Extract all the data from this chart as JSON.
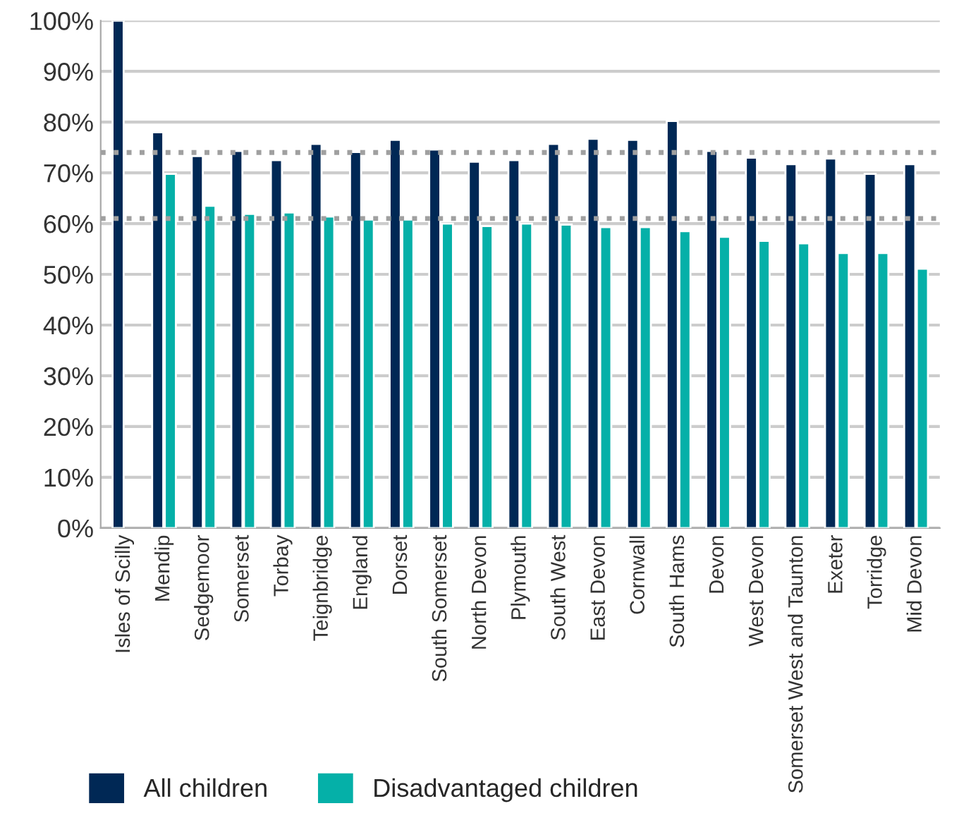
{
  "chart_data": {
    "type": "bar",
    "categories": [
      "Isles of Scilly",
      "Mendip",
      "Sedgemoor",
      "Somerset",
      "Torbay",
      "Teignbridge",
      "England",
      "Dorset",
      "South Somerset",
      "North Devon",
      "Plymouth",
      "South West",
      "East Devon",
      "Cornwall",
      "South Hams",
      "Devon",
      "West Devon",
      "Somerset West and Taunton",
      "Exeter",
      "Torridge",
      "Mid Devon"
    ],
    "series": [
      {
        "name": "All children",
        "color": "#002855",
        "values": [
          100,
          78.0,
          73.3,
          74.3,
          72.5,
          75.7,
          74.1,
          76.5,
          74.6,
          72.2,
          72.5,
          75.7,
          76.7,
          76.5,
          80.2,
          74.3,
          73.0,
          71.7,
          72.8,
          69.8,
          71.7
        ]
      },
      {
        "name": "Disadvantaged children",
        "color": "#05b0a8",
        "values": [
          null,
          69.8,
          63.5,
          61.9,
          62.2,
          61.4,
          60.8,
          60.8,
          60.0,
          59.5,
          60.0,
          59.8,
          59.3,
          59.3,
          58.5,
          57.4,
          56.6,
          56.1,
          54.2,
          54.2,
          51.1
        ]
      }
    ],
    "ylim": [
      0,
      100
    ],
    "yticks": [
      {
        "value": 0,
        "label": "0%"
      },
      {
        "value": 10,
        "label": "10%"
      },
      {
        "value": 20,
        "label": "20%"
      },
      {
        "value": 30,
        "label": "30%"
      },
      {
        "value": 40,
        "label": "40%"
      },
      {
        "value": 50,
        "label": "50%"
      },
      {
        "value": 60,
        "label": "60%"
      },
      {
        "value": 70,
        "label": "70%"
      },
      {
        "value": 80,
        "label": "80%"
      },
      {
        "value": 90,
        "label": "90%"
      },
      {
        "value": 100,
        "label": "100%"
      }
    ],
    "ref_lines": [
      {
        "axis": "y",
        "value": 74,
        "color": "#a0a0a0",
        "line_style": "dotted"
      },
      {
        "axis": "y",
        "value": 61,
        "color": "#a0a0a0",
        "line_style": "dotted"
      }
    ],
    "grid": "y",
    "legend": "bottom left"
  }
}
